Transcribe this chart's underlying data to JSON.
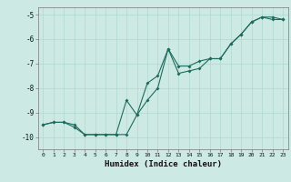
{
  "xlabel": "Humidex (Indice chaleur)",
  "xlim": [
    -0.5,
    23.5
  ],
  "ylim": [
    -10.5,
    -4.7
  ],
  "yticks": [
    -10,
    -9,
    -8,
    -7,
    -6,
    -5
  ],
  "xticks": [
    0,
    1,
    2,
    3,
    4,
    5,
    6,
    7,
    8,
    9,
    10,
    11,
    12,
    13,
    14,
    15,
    16,
    17,
    18,
    19,
    20,
    21,
    22,
    23
  ],
  "bg_color": "#cce9e4",
  "line_color": "#1e6b5e",
  "grid_color": "#b0d8d0",
  "line1_x": [
    0,
    1,
    2,
    3,
    4,
    5,
    6,
    7,
    8,
    9,
    10,
    11,
    12,
    13,
    14,
    15,
    16,
    17,
    18,
    19,
    20,
    21,
    22,
    23
  ],
  "line1_y": [
    -9.5,
    -9.4,
    -9.4,
    -9.5,
    -9.9,
    -9.9,
    -9.9,
    -9.9,
    -9.9,
    -9.1,
    -8.5,
    -8.0,
    -6.4,
    -7.4,
    -7.3,
    -7.2,
    -6.8,
    -6.8,
    -6.2,
    -5.8,
    -5.3,
    -5.1,
    -5.1,
    -5.2
  ],
  "line2_x": [
    0,
    1,
    2,
    3,
    4,
    5,
    6,
    7,
    8,
    9,
    10,
    11,
    12,
    13,
    14,
    15,
    16,
    17,
    18,
    19,
    20,
    21,
    22,
    23
  ],
  "line2_y": [
    -9.5,
    -9.4,
    -9.4,
    -9.6,
    -9.9,
    -9.9,
    -9.9,
    -9.9,
    -8.5,
    -9.1,
    -7.8,
    -7.5,
    -6.4,
    -7.1,
    -7.1,
    -6.9,
    -6.8,
    -6.8,
    -6.2,
    -5.8,
    -5.3,
    -5.1,
    -5.2,
    -5.2
  ]
}
